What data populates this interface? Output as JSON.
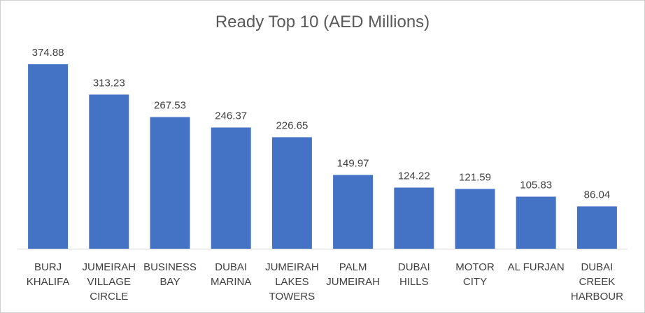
{
  "chart_data": {
    "type": "bar",
    "title": "Ready Top 10 (AED Millions)",
    "xlabel": "",
    "ylabel": "",
    "categories": [
      [
        "BURJ",
        "KHALIFA"
      ],
      [
        "JUMEIRAH",
        "VILLAGE",
        "CIRCLE"
      ],
      [
        "BUSINESS",
        "BAY"
      ],
      [
        "DUBAI",
        "MARINA"
      ],
      [
        "JUMEIRAH",
        "LAKES",
        "TOWERS"
      ],
      [
        "PALM",
        "JUMEIRAH"
      ],
      [
        "DUBAI",
        "HILLS"
      ],
      [
        "MOTOR",
        "CITY"
      ],
      [
        "AL FURJAN"
      ],
      [
        "DUBAI",
        "CREEK",
        "HARBOUR"
      ]
    ],
    "values": [
      374.88,
      313.23,
      267.53,
      246.37,
      226.65,
      149.97,
      124.22,
      121.59,
      105.83,
      86.04
    ],
    "data_labels": [
      "374.88",
      "313.23",
      "267.53",
      "246.37",
      "226.65",
      "149.97",
      "124.22",
      "121.59",
      "105.83",
      "86.04"
    ],
    "ylim": [
      0,
      374.88
    ],
    "grid": false,
    "legend": "none",
    "bar_color": "#4472C4"
  }
}
